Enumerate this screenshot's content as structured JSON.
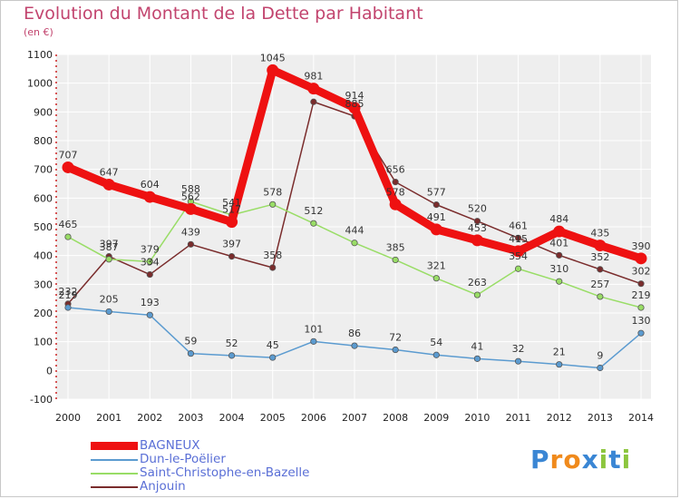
{
  "chart_data": {
    "type": "line",
    "title": "Evolution du Montant de la Dette par Habitant",
    "subtitle": "(en €)",
    "x": [
      "2000",
      "2001",
      "2002",
      "2003",
      "2004",
      "2005",
      "2006",
      "2007",
      "2008",
      "2009",
      "2010",
      "2011",
      "2012",
      "2013",
      "2014"
    ],
    "ylim": [
      -100,
      1100
    ],
    "yticks": [
      -100,
      0,
      100,
      200,
      300,
      400,
      500,
      600,
      700,
      800,
      900,
      1000,
      1100
    ],
    "grid": true,
    "legend_placement": "bottom-left",
    "series": [
      {
        "name": "BAGNEUX",
        "color": "#ee1111",
        "width": 9,
        "values": [
          707,
          647,
          604,
          562,
          517,
          1045,
          981,
          914,
          578,
          491,
          453,
          415,
          484,
          435,
          390
        ],
        "labels": [
          "707",
          "647",
          "604",
          "562",
          "517",
          "1045",
          "981",
          "914",
          "578",
          "491",
          "453",
          "415",
          "484",
          "435",
          "390"
        ]
      },
      {
        "name": "Dun-le-Poëlier",
        "color": "#5b9bd0",
        "width": 1.5,
        "values": [
          219,
          205,
          193,
          59,
          52,
          45,
          101,
          86,
          72,
          54,
          41,
          32,
          21,
          9,
          130
        ],
        "labels": [
          "219",
          "205",
          "193",
          "59",
          "52",
          "45",
          "101",
          "86",
          "72",
          "54",
          "41",
          "32",
          "21",
          "9",
          "130"
        ]
      },
      {
        "name": "Saint-Christophe-en-Bazelle",
        "color": "#99dd66",
        "width": 1.5,
        "values": [
          465,
          387,
          379,
          588,
          541,
          578,
          512,
          444,
          385,
          321,
          263,
          354,
          310,
          257,
          219
        ],
        "labels": [
          "465",
          "387",
          "379",
          "588",
          "541",
          "578",
          "512",
          "444",
          "385",
          "321",
          "263",
          "354",
          "310",
          "257",
          "219"
        ]
      },
      {
        "name": "Anjouin",
        "color": "#7a2c2c",
        "width": 1.5,
        "values": [
          232,
          397,
          334,
          439,
          397,
          358,
          935,
          885,
          656,
          577,
          520,
          461,
          401,
          352,
          302
        ],
        "labels": [
          "232",
          "397",
          "334",
          "439",
          "397",
          "358",
          "",
          "885",
          "656",
          "577",
          "520",
          "461",
          "401",
          "352",
          "302"
        ]
      }
    ]
  },
  "brand": {
    "letters": [
      "P",
      "r",
      "o",
      "x",
      "i",
      "t",
      "i"
    ],
    "colors": [
      "#3a86d4",
      "#f08a1c",
      "#f08a1c",
      "#3a86d4",
      "#8cc63e",
      "#3a86d4",
      "#8cc63e"
    ]
  }
}
